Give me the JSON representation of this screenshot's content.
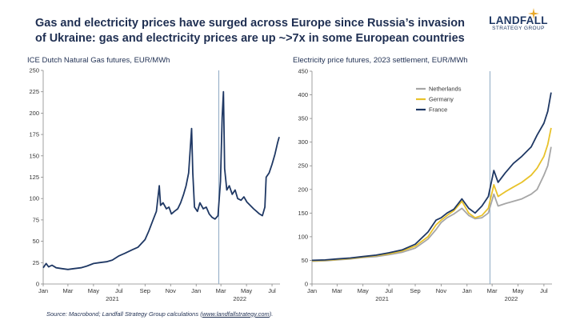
{
  "header": {
    "title": "Gas and electricity prices have surged across Europe since Russia’s invasion of Ukraine: gas and electricity prices are up ~>7x in some European countries"
  },
  "logo": {
    "brand": "LANDFALL",
    "sub": "STRATEGY GROUP"
  },
  "source": {
    "prefix": "Source: Macrobond; Landfall Strategy Group calculations (",
    "link": "www.landfallstrategy.com",
    "suffix": ")."
  },
  "chart_data": [
    {
      "type": "line",
      "title": "ICE Dutch Natural Gas futures, EUR/MWh",
      "ylim": [
        0,
        250
      ],
      "yticks": [
        0,
        25,
        50,
        75,
        100,
        125,
        150,
        175,
        200,
        225,
        250
      ],
      "xlim": [
        "2021-01-01",
        "2022-07-20"
      ],
      "xticks": [
        "Jan",
        "Mar",
        "May",
        "Jul",
        "Sep",
        "Nov",
        "Jan",
        "Mar",
        "May",
        "Jul"
      ],
      "year_labels": [
        "2021",
        "2022"
      ],
      "event_line": "2022-02-24",
      "colors": {
        "line": "#1f3864",
        "event": "#8faac4"
      },
      "series": [
        {
          "color": "#1f3864",
          "points": [
            [
              "2021-01-01",
              19
            ],
            [
              "2021-01-08",
              24
            ],
            [
              "2021-01-14",
              20
            ],
            [
              "2021-01-22",
              22
            ],
            [
              "2021-02-01",
              19
            ],
            [
              "2021-02-15",
              18
            ],
            [
              "2021-03-01",
              17
            ],
            [
              "2021-03-15",
              18
            ],
            [
              "2021-04-01",
              19
            ],
            [
              "2021-04-15",
              21
            ],
            [
              "2021-05-01",
              24
            ],
            [
              "2021-05-15",
              25
            ],
            [
              "2021-06-01",
              26
            ],
            [
              "2021-06-15",
              28
            ],
            [
              "2021-07-01",
              33
            ],
            [
              "2021-07-15",
              36
            ],
            [
              "2021-08-01",
              40
            ],
            [
              "2021-08-15",
              43
            ],
            [
              "2021-09-01",
              52
            ],
            [
              "2021-09-10",
              62
            ],
            [
              "2021-09-20",
              75
            ],
            [
              "2021-09-28",
              85
            ],
            [
              "2021-10-05",
              115
            ],
            [
              "2021-10-08",
              92
            ],
            [
              "2021-10-14",
              95
            ],
            [
              "2021-10-22",
              88
            ],
            [
              "2021-10-28",
              90
            ],
            [
              "2021-11-03",
              82
            ],
            [
              "2021-11-10",
              85
            ],
            [
              "2021-11-18",
              88
            ],
            [
              "2021-11-25",
              95
            ],
            [
              "2021-12-02",
              105
            ],
            [
              "2021-12-08",
              115
            ],
            [
              "2021-12-14",
              130
            ],
            [
              "2021-12-21",
              182
            ],
            [
              "2021-12-24",
              130
            ],
            [
              "2021-12-28",
              90
            ],
            [
              "2022-01-04",
              85
            ],
            [
              "2022-01-10",
              95
            ],
            [
              "2022-01-18",
              88
            ],
            [
              "2022-01-25",
              90
            ],
            [
              "2022-02-01",
              82
            ],
            [
              "2022-02-08",
              78
            ],
            [
              "2022-02-15",
              76
            ],
            [
              "2022-02-22",
              80
            ],
            [
              "2022-02-28",
              120
            ],
            [
              "2022-03-04",
              195
            ],
            [
              "2022-03-07",
              225
            ],
            [
              "2022-03-10",
              135
            ],
            [
              "2022-03-15",
              110
            ],
            [
              "2022-03-21",
              115
            ],
            [
              "2022-03-28",
              105
            ],
            [
              "2022-04-04",
              110
            ],
            [
              "2022-04-10",
              100
            ],
            [
              "2022-04-18",
              98
            ],
            [
              "2022-04-25",
              102
            ],
            [
              "2022-05-02",
              96
            ],
            [
              "2022-05-10",
              92
            ],
            [
              "2022-05-18",
              88
            ],
            [
              "2022-05-25",
              85
            ],
            [
              "2022-06-01",
              82
            ],
            [
              "2022-06-08",
              80
            ],
            [
              "2022-06-14",
              90
            ],
            [
              "2022-06-17",
              125
            ],
            [
              "2022-06-24",
              130
            ],
            [
              "2022-07-01",
              140
            ],
            [
              "2022-07-08",
              152
            ],
            [
              "2022-07-14",
              165
            ],
            [
              "2022-07-18",
              172
            ]
          ]
        }
      ]
    },
    {
      "type": "line",
      "title": "Electricity price futures, 2023 settlement, EUR/MWh",
      "ylim": [
        0,
        450
      ],
      "yticks": [
        0,
        50,
        100,
        150,
        200,
        250,
        300,
        350,
        400,
        450
      ],
      "xlim": [
        "2021-01-01",
        "2022-07-20"
      ],
      "xticks": [
        "Jan",
        "Mar",
        "May",
        "Jul",
        "Sep",
        "Nov",
        "Jan",
        "Mar",
        "May",
        "Jul"
      ],
      "year_labels": [
        "2021",
        "2022"
      ],
      "event_line": "2022-02-24",
      "legend_position": "top-left",
      "colors": {
        "event": "#8faac4"
      },
      "series": [
        {
          "name": "Netherlands",
          "color": "#a6a6a6",
          "points": [
            [
              "2021-01-01",
              48
            ],
            [
              "2021-02-01",
              49
            ],
            [
              "2021-03-01",
              51
            ],
            [
              "2021-04-01",
              53
            ],
            [
              "2021-05-01",
              56
            ],
            [
              "2021-06-01",
              58
            ],
            [
              "2021-07-01",
              62
            ],
            [
              "2021-08-01",
              67
            ],
            [
              "2021-09-01",
              76
            ],
            [
              "2021-10-01",
              95
            ],
            [
              "2021-10-20",
              115
            ],
            [
              "2021-11-01",
              130
            ],
            [
              "2021-11-15",
              140
            ],
            [
              "2021-12-01",
              148
            ],
            [
              "2021-12-20",
              160
            ],
            [
              "2022-01-05",
              145
            ],
            [
              "2022-01-20",
              138
            ],
            [
              "2022-02-05",
              140
            ],
            [
              "2022-02-20",
              150
            ],
            [
              "2022-03-05",
              190
            ],
            [
              "2022-03-15",
              165
            ],
            [
              "2022-04-01",
              170
            ],
            [
              "2022-04-20",
              175
            ],
            [
              "2022-05-10",
              180
            ],
            [
              "2022-06-01",
              190
            ],
            [
              "2022-06-15",
              200
            ],
            [
              "2022-07-01",
              230
            ],
            [
              "2022-07-10",
              250
            ],
            [
              "2022-07-18",
              290
            ]
          ]
        },
        {
          "name": "Germany",
          "color": "#e8c22a",
          "points": [
            [
              "2021-01-01",
              49
            ],
            [
              "2021-02-01",
              50
            ],
            [
              "2021-03-01",
              52
            ],
            [
              "2021-04-01",
              54
            ],
            [
              "2021-05-01",
              57
            ],
            [
              "2021-06-01",
              60
            ],
            [
              "2021-07-01",
              64
            ],
            [
              "2021-08-01",
              70
            ],
            [
              "2021-09-01",
              80
            ],
            [
              "2021-10-01",
              100
            ],
            [
              "2021-10-20",
              125
            ],
            [
              "2021-11-01",
              135
            ],
            [
              "2021-11-15",
              145
            ],
            [
              "2021-12-01",
              155
            ],
            [
              "2021-12-20",
              175
            ],
            [
              "2022-01-05",
              150
            ],
            [
              "2022-01-20",
              140
            ],
            [
              "2022-02-05",
              145
            ],
            [
              "2022-02-20",
              160
            ],
            [
              "2022-03-05",
              210
            ],
            [
              "2022-03-15",
              185
            ],
            [
              "2022-04-01",
              195
            ],
            [
              "2022-04-20",
              205
            ],
            [
              "2022-05-10",
              215
            ],
            [
              "2022-06-01",
              230
            ],
            [
              "2022-06-15",
              245
            ],
            [
              "2022-07-01",
              270
            ],
            [
              "2022-07-10",
              295
            ],
            [
              "2022-07-18",
              330
            ]
          ]
        },
        {
          "name": "France",
          "color": "#1f3864",
          "points": [
            [
              "2021-01-01",
              50
            ],
            [
              "2021-02-01",
              51
            ],
            [
              "2021-03-01",
              53
            ],
            [
              "2021-04-01",
              55
            ],
            [
              "2021-05-01",
              58
            ],
            [
              "2021-06-01",
              61
            ],
            [
              "2021-07-01",
              66
            ],
            [
              "2021-08-01",
              72
            ],
            [
              "2021-09-01",
              84
            ],
            [
              "2021-10-01",
              110
            ],
            [
              "2021-10-20",
              135
            ],
            [
              "2021-11-01",
              140
            ],
            [
              "2021-11-15",
              150
            ],
            [
              "2021-12-01",
              158
            ],
            [
              "2021-12-20",
              180
            ],
            [
              "2022-01-05",
              160
            ],
            [
              "2022-01-20",
              150
            ],
            [
              "2022-02-05",
              165
            ],
            [
              "2022-02-20",
              185
            ],
            [
              "2022-03-05",
              240
            ],
            [
              "2022-03-15",
              215
            ],
            [
              "2022-04-01",
              235
            ],
            [
              "2022-04-20",
              255
            ],
            [
              "2022-05-10",
              270
            ],
            [
              "2022-06-01",
              290
            ],
            [
              "2022-06-15",
              315
            ],
            [
              "2022-07-01",
              340
            ],
            [
              "2022-07-10",
              365
            ],
            [
              "2022-07-18",
              405
            ]
          ]
        }
      ]
    }
  ]
}
